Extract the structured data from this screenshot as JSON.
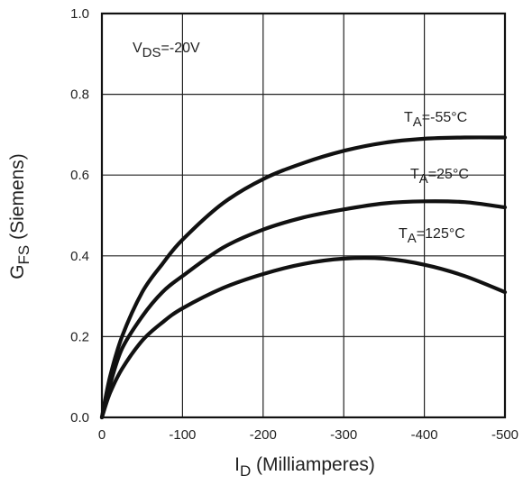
{
  "chart_data": {
    "type": "line",
    "xlabel": {
      "main": "I",
      "sub": "D",
      "rest": " (Milliamperes)"
    },
    "ylabel": {
      "main": "G",
      "sub": "FS",
      "rest": " (Siemens)"
    },
    "xlim": [
      0,
      -500
    ],
    "ylim": [
      0,
      1.0
    ],
    "x_ticks": [
      0,
      -100,
      -200,
      -300,
      -400,
      -500
    ],
    "y_ticks": [
      0.0,
      0.2,
      0.4,
      0.6,
      0.8,
      1.0
    ],
    "x_tick_labels": [
      "0",
      "-100",
      "-200",
      "-300",
      "-400",
      "-500"
    ],
    "y_tick_labels": [
      "0.0",
      "0.2",
      "0.4",
      "0.6",
      "0.8",
      "1.0"
    ],
    "grid": true,
    "condition": {
      "main": "V",
      "sub": "DS",
      "rest": "=-20V"
    },
    "series": [
      {
        "name": "TA=-55°C",
        "label": {
          "main": "T",
          "sub": "A",
          "rest": "=-55°C"
        },
        "x": [
          0,
          -10,
          -25,
          -50,
          -75,
          -100,
          -150,
          -200,
          -250,
          -300,
          -350,
          -400,
          -450,
          -500
        ],
        "y": [
          0,
          0.1,
          0.2,
          0.31,
          0.38,
          0.44,
          0.53,
          0.59,
          0.63,
          0.66,
          0.68,
          0.69,
          0.693,
          0.693
        ]
      },
      {
        "name": "TA=25°C",
        "label": {
          "main": "T",
          "sub": "A",
          "rest": "=25°C"
        },
        "x": [
          0,
          -10,
          -25,
          -50,
          -75,
          -100,
          -150,
          -200,
          -250,
          -300,
          -350,
          -400,
          -450,
          -500
        ],
        "y": [
          0,
          0.08,
          0.17,
          0.25,
          0.31,
          0.35,
          0.42,
          0.465,
          0.495,
          0.515,
          0.53,
          0.535,
          0.533,
          0.52
        ]
      },
      {
        "name": "TA=125°C",
        "label": {
          "main": "T",
          "sub": "A",
          "rest": "=125°C"
        },
        "x": [
          0,
          -10,
          -25,
          -50,
          -75,
          -100,
          -150,
          -200,
          -250,
          -300,
          -350,
          -400,
          -450,
          -500
        ],
        "y": [
          0,
          0.06,
          0.12,
          0.19,
          0.235,
          0.27,
          0.32,
          0.355,
          0.38,
          0.393,
          0.393,
          0.378,
          0.35,
          0.31
        ]
      }
    ]
  }
}
